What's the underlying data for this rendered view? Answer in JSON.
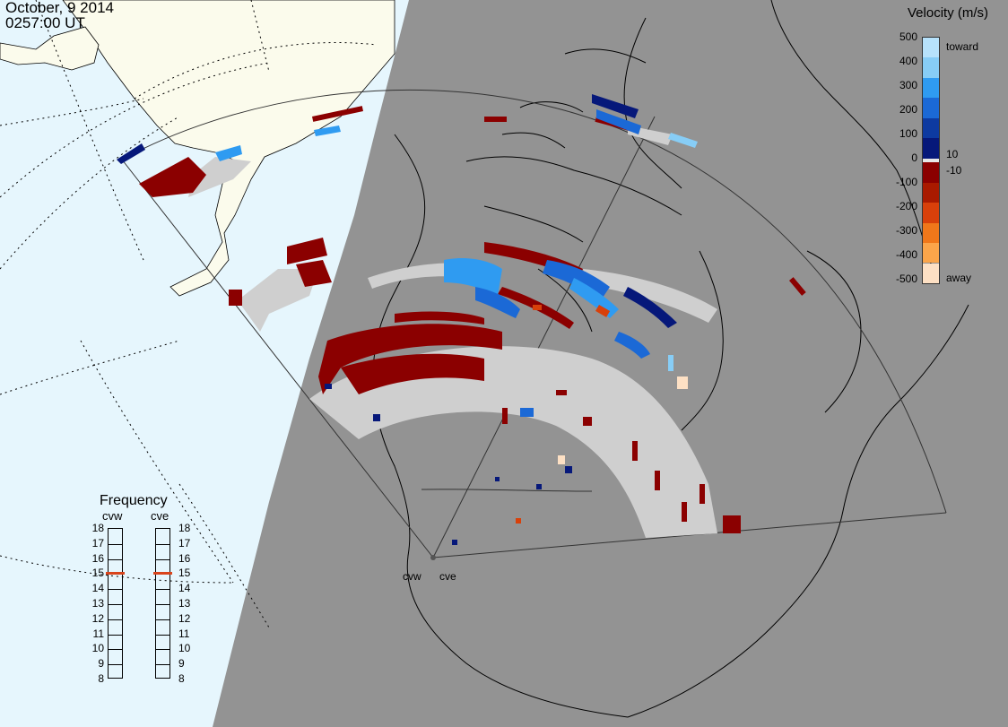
{
  "header": {
    "date": "October, 9 2014",
    "time": "0257:00 UT"
  },
  "velocity_scale": {
    "title": "Velocity (m/s)",
    "toward_label": "toward",
    "away_label": "away",
    "ticks": [
      "500",
      "400",
      "300",
      "200",
      "100",
      "10",
      "0",
      "-10",
      "-100",
      "-200",
      "-300",
      "-400",
      "-500"
    ],
    "colors": [
      "#b7e2fb",
      "#87cdf6",
      "#2f9bf1",
      "#1b69d6",
      "#0d3aa1",
      "#06187a",
      "#e8e8e8",
      "#8b0000",
      "#a91a00",
      "#d8400a",
      "#f0771a",
      "#fba54a",
      "#fde0c4"
    ]
  },
  "frequency_panel": {
    "title": "Frequency",
    "left_label": "cvw",
    "right_label": "cve",
    "ticks": [
      "18",
      "17",
      "16",
      "15",
      "14",
      "13",
      "12",
      "11",
      "10",
      "9",
      "8"
    ],
    "left_value": 15,
    "right_value": 15,
    "indicator_color": "#d9441c"
  },
  "radars": {
    "west_label": "cvw",
    "east_label": "cve"
  },
  "colors": {
    "ocean": "#e6f6fd",
    "night_side": "#939393",
    "land_day": "#fbfbec",
    "ground_scatter": "#cfcfcf"
  }
}
